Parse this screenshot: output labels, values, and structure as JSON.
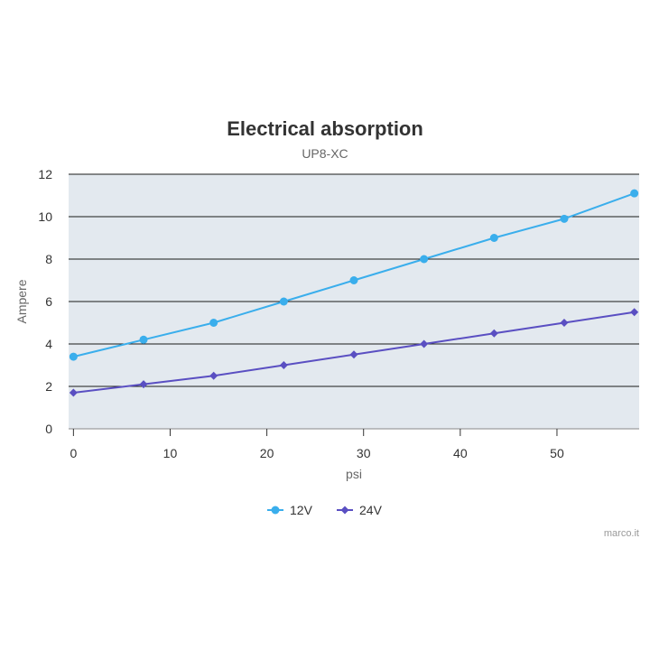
{
  "chart_data": {
    "type": "line",
    "title": "Electrical absorption",
    "subtitle": "UP8-XC",
    "xlabel": "psi",
    "ylabel": "Ampere",
    "xlim": [
      -0.5,
      58.5
    ],
    "ylim": [
      0,
      12
    ],
    "xticks": [
      0,
      10,
      20,
      30,
      40,
      50
    ],
    "yticks": [
      0,
      2,
      4,
      6,
      8,
      10,
      12
    ],
    "grid": "horizontal",
    "legend_position": "bottom-center",
    "plot_background": "#e3e9ef",
    "series": [
      {
        "name": "12V",
        "color": "#3aaeec",
        "marker": "circle",
        "x": [
          0,
          7.25,
          14.5,
          21.75,
          29,
          36.25,
          43.5,
          50.75,
          58
        ],
        "y": [
          3.4,
          4.2,
          5.0,
          6.0,
          7.0,
          8.0,
          9.0,
          9.9,
          11.1
        ]
      },
      {
        "name": "24V",
        "color": "#5a4fc2",
        "marker": "diamond",
        "x": [
          0,
          7.25,
          14.5,
          21.75,
          29,
          36.25,
          43.5,
          50.75,
          58
        ],
        "y": [
          1.7,
          2.1,
          2.5,
          3.0,
          3.5,
          4.0,
          4.5,
          5.0,
          5.5
        ]
      }
    ]
  },
  "credit": "marco.it"
}
